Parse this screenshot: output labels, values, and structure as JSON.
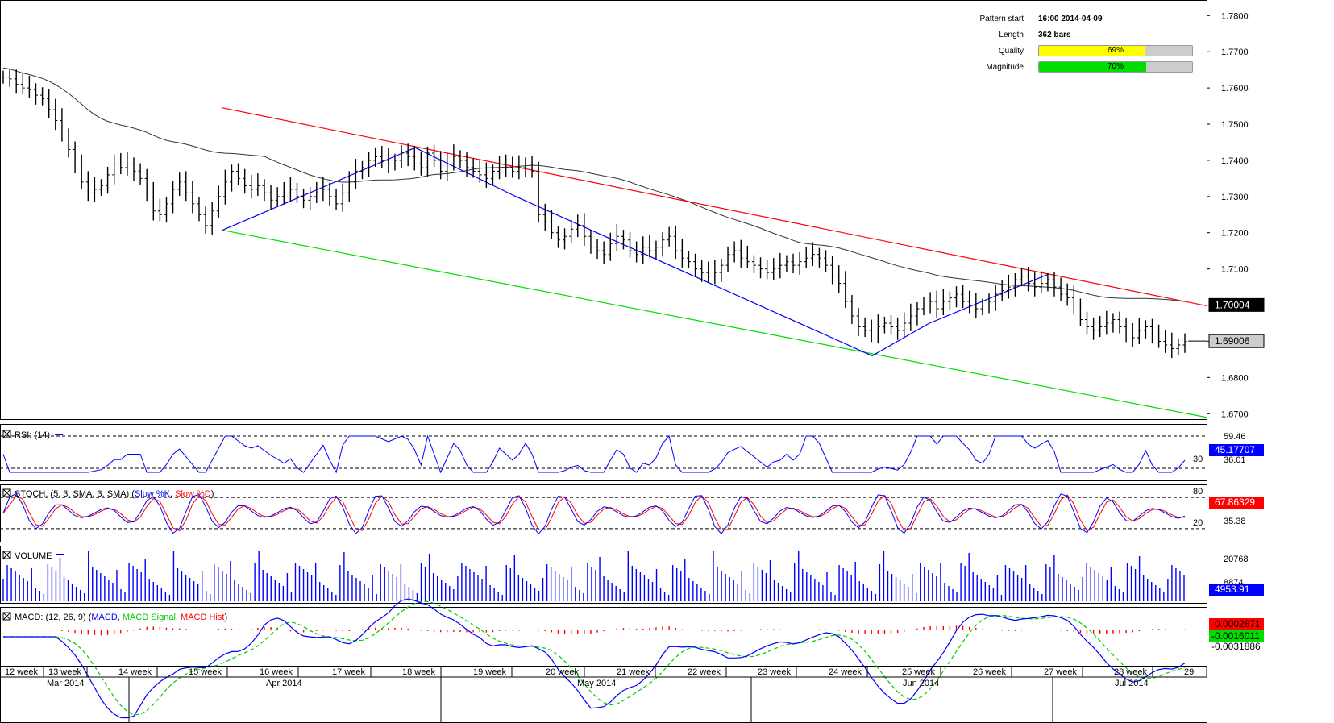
{
  "pattern_info": {
    "pattern_start_label": "Pattern start",
    "pattern_start_value": "16:00 2014-04-09",
    "length_label": "Length",
    "length_value": "362 bars",
    "quality_label": "Quality",
    "quality_value": "69%",
    "quality_fraction": 0.69,
    "magnitude_label": "Magnitude",
    "magnitude_value": "70%",
    "magnitude_fraction": 0.7,
    "quality_color": "#ffff00",
    "magnitude_color": "#00dd00"
  },
  "chart_data": [
    {
      "type": "ohlc",
      "panel": "price",
      "y_ticks": [
        "1.7800",
        "1.7700",
        "1.7600",
        "1.7500",
        "1.7400",
        "1.7300",
        "1.7200",
        "1.7100",
        "1.7000",
        "1.6900",
        "1.6800",
        "1.6700"
      ],
      "ylim": [
        1.6685,
        1.7843
      ],
      "close_series": [
        1.763,
        1.7625,
        1.761,
        1.76,
        1.7595,
        1.758,
        1.757,
        1.754,
        1.751,
        1.747,
        1.743,
        1.739,
        1.734,
        1.731,
        1.732,
        1.733,
        1.736,
        1.739,
        1.738,
        1.739,
        1.737,
        1.735,
        1.731,
        1.726,
        1.725,
        1.728,
        1.732,
        1.734,
        1.731,
        1.728,
        1.725,
        1.722,
        1.726,
        1.73,
        1.734,
        1.737,
        1.735,
        1.733,
        1.732,
        1.733,
        1.731,
        1.729,
        1.73,
        1.731,
        1.732,
        1.73,
        1.729,
        1.73,
        1.731,
        1.732,
        1.73,
        1.728,
        1.731,
        1.734,
        1.737,
        1.738,
        1.74,
        1.741,
        1.74,
        1.739,
        1.74,
        1.742,
        1.741,
        1.739,
        1.738,
        1.742,
        1.74,
        1.737,
        1.739,
        1.741,
        1.74,
        1.738,
        1.737,
        1.736,
        1.735,
        1.737,
        1.739,
        1.738,
        1.737,
        1.738,
        1.739,
        1.737,
        1.725,
        1.723,
        1.72,
        1.718,
        1.719,
        1.721,
        1.722,
        1.719,
        1.716,
        1.715,
        1.714,
        1.717,
        1.719,
        1.718,
        1.715,
        1.714,
        1.716,
        1.715,
        1.716,
        1.718,
        1.719,
        1.715,
        1.713,
        1.712,
        1.71,
        1.709,
        1.708,
        1.709,
        1.711,
        1.714,
        1.715,
        1.713,
        1.712,
        1.711,
        1.71,
        1.709,
        1.71,
        1.711,
        1.712,
        1.711,
        1.712,
        1.713,
        1.714,
        1.713,
        1.711,
        1.708,
        1.706,
        1.701,
        1.697,
        1.694,
        1.693,
        1.692,
        1.694,
        1.695,
        1.694,
        1.693,
        1.695,
        1.697,
        1.699,
        1.7,
        1.701,
        1.699,
        1.701,
        1.702,
        1.703,
        1.701,
        1.7,
        1.699,
        1.7,
        1.701,
        1.703,
        1.704,
        1.705,
        1.707,
        1.708,
        1.706,
        1.705,
        1.706,
        1.707,
        1.705,
        1.703,
        1.702,
        1.7,
        1.696,
        1.694,
        1.693,
        1.694,
        1.695,
        1.696,
        1.694,
        1.692,
        1.691,
        1.693,
        1.694,
        1.692,
        1.69,
        1.689,
        1.688,
        1.689,
        1.69
      ]
    },
    {
      "type": "line",
      "panel": "rsi",
      "legend": "RSI (14)",
      "levels": [
        30,
        70
      ],
      "tick_labels": [
        "59.46",
        "30",
        "36.01",
        "45.17707"
      ],
      "current_value": "45.17707"
    },
    {
      "type": "line",
      "panel": "stoch",
      "legend": "STOCH (5, 3, SMA, 3, SMA)",
      "series": [
        {
          "name": "Slow %K",
          "color": "#0000ff"
        },
        {
          "name": "Slow %D",
          "color": "#ff0000"
        }
      ],
      "levels": [
        20,
        80
      ],
      "tick_labels": [
        "80",
        "20",
        "35.38",
        "67.86329"
      ],
      "current_value": "67.86329"
    },
    {
      "type": "bar",
      "panel": "volume",
      "legend": "VOLUME",
      "tick_labels": [
        "20768",
        "8874",
        "4953.91"
      ],
      "current_value": "4953.91"
    },
    {
      "type": "line",
      "panel": "macd",
      "legend": "MACD: (12, 26, 9)",
      "series": [
        {
          "name": "MACD",
          "color": "#0000ff"
        },
        {
          "name": "MACD Signal",
          "color": "#00cc00"
        },
        {
          "name": "MACD Hist",
          "color": "#ff0000"
        }
      ],
      "tick_labels": [
        "0.0002871",
        "-0.0016011",
        "-0.0031886"
      ]
    }
  ],
  "price_boxes": [
    {
      "text": "1.70004",
      "bg": "#000000",
      "fg": "#ffffff"
    },
    {
      "text": "1.69006",
      "bg": "#cccccc",
      "fg": "#000000"
    }
  ],
  "indicator_boxes": {
    "rsi": {
      "text": "45.17707",
      "bg": "#0000ff",
      "fg": "#ffffff"
    },
    "stoch": {
      "text": "67.86329",
      "bg": "#ff0000",
      "fg": "#ffffff"
    },
    "volume": {
      "text": "4953.91",
      "bg": "#0000ff",
      "fg": "#ffffff"
    },
    "macd_hist": {
      "text": "0.0002871",
      "bg": "#ff0000",
      "fg": "#000000"
    },
    "macd_signal": {
      "text": "-0.0016011",
      "bg": "#00dd00",
      "fg": "#000000"
    },
    "macd_low": {
      "text": "-0.0031886"
    }
  },
  "x_axis": {
    "weeks": [
      "12 week",
      "13 week",
      "14 week",
      "15 week",
      "16 week",
      "17 week",
      "18 week",
      "19 week",
      "20 week",
      "21 week",
      "22 week",
      "23 week",
      "24 week",
      "25 week",
      "26 week",
      "27 week",
      "28 week",
      "29"
    ],
    "months": [
      "Mar 2014",
      "Apr 2014",
      "May 2014",
      "Jun 2014",
      "Jul 2014"
    ]
  },
  "legends": {
    "rsi": "RSI: (14)",
    "stoch_prefix": "STOCH: (5, 3, SMA, 3, SMA)",
    "stoch_k": "Slow %K",
    "stoch_d": "Slow %D",
    "volume": "VOLUME",
    "macd_prefix": "MACD: (12, 26, 9)",
    "macd": "MACD",
    "macd_signal": "MACD Signal",
    "macd_hist": "MACD Hist"
  },
  "colors": {
    "resistance": "#ff0000",
    "support": "#00dd00",
    "pattern": "#0000ff",
    "ma": "#333333",
    "rsi": "#0000ff",
    "volume": "#0000ff"
  }
}
